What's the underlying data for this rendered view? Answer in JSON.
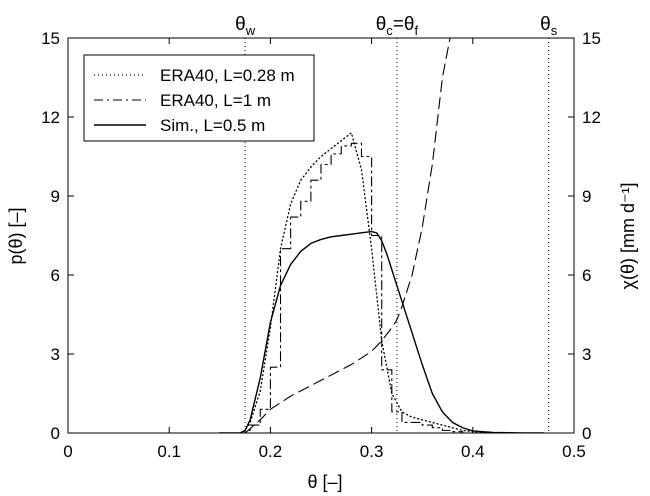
{
  "chart_data": {
    "type": "line",
    "xlabel": "θ [–]",
    "ylabel_left": "p(θ) [–]",
    "ylabel_right": "χ(θ) [mm d⁻¹]",
    "xlim": [
      0,
      0.5
    ],
    "ylim_left": [
      0,
      15
    ],
    "ylim_right": [
      0,
      15
    ],
    "x_ticks": [
      "0",
      "0.1",
      "0.2",
      "0.3",
      "0.4",
      "0.5"
    ],
    "y_ticks_left": [
      "0",
      "3",
      "6",
      "9",
      "12",
      "15"
    ],
    "y_ticks_right": [
      "0",
      "3",
      "6",
      "9",
      "12",
      "15"
    ],
    "grid": false,
    "legend_position": "top-left",
    "top_markers": [
      {
        "base": "θ",
        "sub": "w",
        "x": 0.175
      },
      {
        "base": "θ",
        "sub": "c",
        "mid": "=θ",
        "sub2": "f",
        "x": 0.325
      },
      {
        "base": "θ",
        "sub": "s",
        "x": 0.475
      }
    ],
    "series": [
      {
        "name": "ERA40, L=0.28 m",
        "style": "dotted",
        "axis": "left",
        "x": [
          0.15,
          0.17,
          0.175,
          0.18,
          0.19,
          0.2,
          0.21,
          0.22,
          0.23,
          0.24,
          0.25,
          0.26,
          0.27,
          0.28,
          0.29,
          0.3,
          0.31,
          0.32,
          0.33,
          0.34,
          0.35,
          0.36,
          0.37,
          0.38,
          0.39,
          0.4,
          0.42
        ],
        "y": [
          0,
          0,
          0.1,
          0.4,
          1.6,
          4.0,
          7.0,
          8.7,
          9.6,
          10.1,
          10.5,
          10.8,
          11.1,
          11.4,
          10.0,
          7.0,
          3.5,
          1.5,
          0.8,
          0.6,
          0.5,
          0.4,
          0.3,
          0.2,
          0.1,
          0.05,
          0
        ]
      },
      {
        "name": "ERA40, L=1 m",
        "style": "dash-dot-steps",
        "axis": "left",
        "x": [
          0.15,
          0.17,
          0.175,
          0.18,
          0.19,
          0.2,
          0.21,
          0.22,
          0.23,
          0.24,
          0.25,
          0.26,
          0.27,
          0.28,
          0.29,
          0.3,
          0.31,
          0.32,
          0.33,
          0.34,
          0.35,
          0.36,
          0.37,
          0.38,
          0.39,
          0.4
        ],
        "y": [
          0,
          0,
          0.1,
          0.3,
          0.9,
          2.5,
          7.0,
          8.2,
          8.8,
          9.6,
          10.2,
          10.6,
          10.9,
          11.0,
          10.5,
          7.5,
          2.4,
          0.8,
          0.4,
          0.4,
          0.3,
          0.2,
          0.1,
          0.05,
          0,
          0
        ]
      },
      {
        "name": "Sim., L=0.5 m",
        "style": "solid",
        "axis": "left",
        "x": [
          0.15,
          0.17,
          0.175,
          0.18,
          0.19,
          0.2,
          0.21,
          0.22,
          0.23,
          0.24,
          0.25,
          0.26,
          0.27,
          0.28,
          0.29,
          0.3,
          0.305,
          0.31,
          0.315,
          0.32,
          0.33,
          0.34,
          0.35,
          0.36,
          0.37,
          0.38,
          0.39,
          0.4,
          0.42,
          0.45,
          0.47
        ],
        "y": [
          0,
          0,
          0.1,
          0.5,
          2.1,
          4.2,
          5.6,
          6.4,
          6.9,
          7.2,
          7.35,
          7.45,
          7.5,
          7.55,
          7.6,
          7.65,
          7.6,
          7.3,
          6.8,
          6.2,
          5.0,
          3.8,
          2.6,
          1.5,
          0.8,
          0.4,
          0.2,
          0.08,
          0.02,
          0,
          0
        ]
      },
      {
        "name": "χ(θ)",
        "style": "dashed",
        "axis": "right",
        "x": [
          0.175,
          0.19,
          0.2,
          0.22,
          0.24,
          0.26,
          0.28,
          0.3,
          0.31,
          0.32,
          0.325,
          0.33,
          0.34,
          0.35,
          0.36,
          0.37,
          0.38
        ],
        "y": [
          0,
          0.5,
          0.9,
          1.4,
          1.8,
          2.2,
          2.6,
          3.1,
          3.5,
          4.0,
          4.3,
          4.8,
          6.0,
          7.8,
          10.2,
          13.5,
          15.5
        ]
      }
    ]
  }
}
